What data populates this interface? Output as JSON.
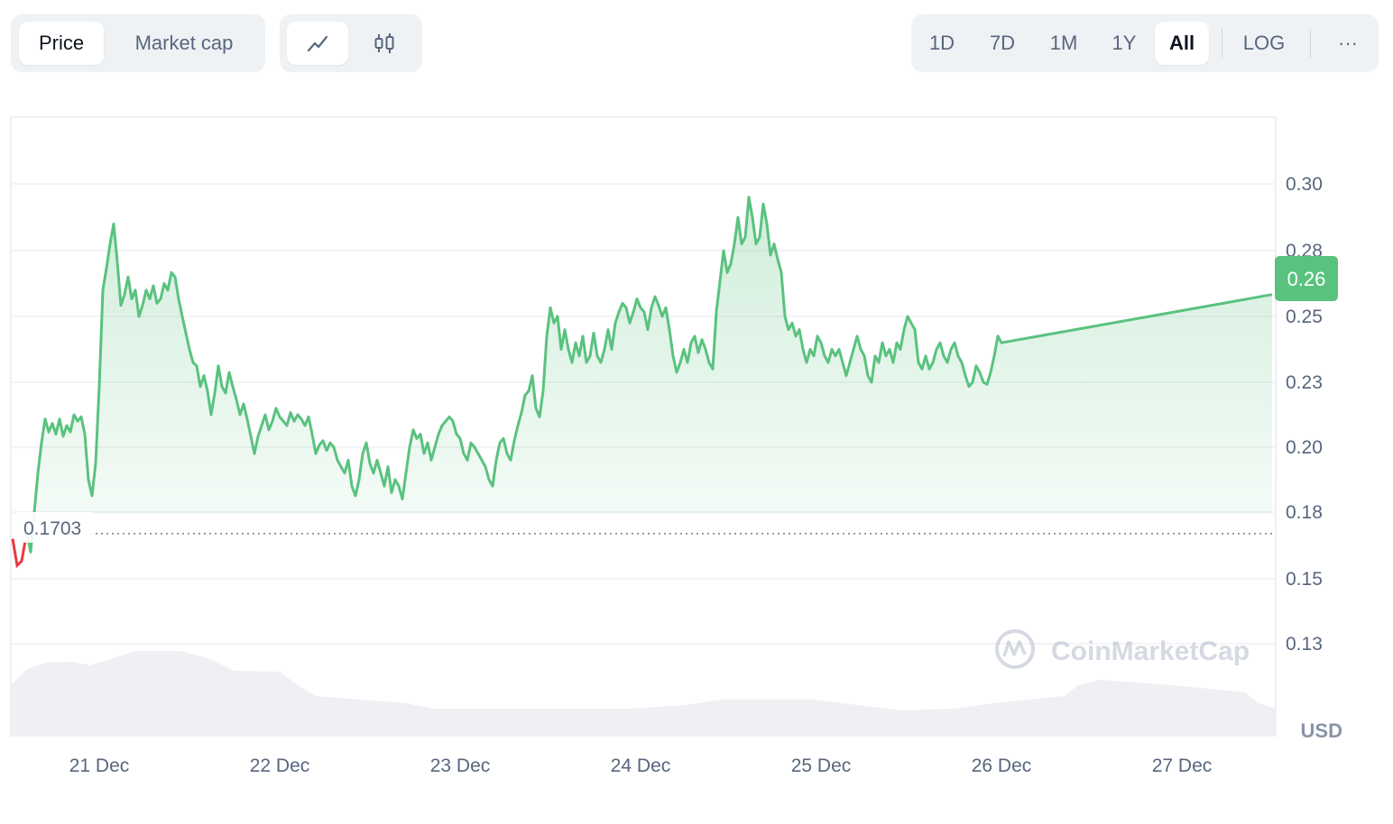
{
  "toolbar": {
    "type_tabs": [
      "Price",
      "Market cap"
    ],
    "active_type": "Price",
    "view_icons": [
      "line-chart-icon",
      "candlestick-icon"
    ],
    "ranges": [
      "1D",
      "7D",
      "1M",
      "1Y",
      "All"
    ],
    "active_range": "All",
    "log_label": "LOG",
    "more_label": "···"
  },
  "watermark": "CoinMarketCap",
  "currency_label": "USD",
  "colors": {
    "up": "#16c784",
    "down": "#ea3943",
    "line": "#5ac27f",
    "badge": "#5ac27f"
  },
  "chart_data": {
    "type": "area",
    "title": "",
    "xlabel": "",
    "ylabel": "",
    "x_ticks": [
      "21 Dec",
      "22 Dec",
      "23 Dec",
      "24 Dec",
      "25 Dec",
      "26 Dec",
      "27 Dec"
    ],
    "y_ticks": [
      "0.30",
      "0.28",
      "0.25",
      "0.23",
      "0.20",
      "0.18",
      "0.15",
      "0.13"
    ],
    "ylim": [
      0.11,
      0.32
    ],
    "xlim_days": [
      20.5,
      27.55
    ],
    "baseline_value": 0.1703,
    "baseline_label": "0.1703",
    "current_price_label": "0.26",
    "series": [
      {
        "name": "Price",
        "points": [
          [
            20.6,
            0.17
          ],
          [
            20.62,
            0.162
          ],
          [
            20.64,
            0.18
          ],
          [
            20.66,
            0.192
          ],
          [
            20.68,
            0.202
          ],
          [
            20.7,
            0.213
          ],
          [
            20.72,
            0.207
          ],
          [
            20.74,
            0.211
          ],
          [
            20.76,
            0.206
          ],
          [
            20.78,
            0.213
          ],
          [
            20.8,
            0.205
          ],
          [
            20.82,
            0.21
          ],
          [
            20.84,
            0.207
          ],
          [
            20.86,
            0.215
          ],
          [
            20.88,
            0.212
          ],
          [
            20.9,
            0.214
          ],
          [
            20.92,
            0.206
          ],
          [
            20.94,
            0.19
          ],
          [
            20.96,
            0.185
          ],
          [
            20.98,
            0.195
          ],
          [
            21.0,
            0.228
          ],
          [
            21.02,
            0.262
          ],
          [
            21.04,
            0.272
          ],
          [
            21.06,
            0.282
          ],
          [
            21.08,
            0.288
          ],
          [
            21.1,
            0.275
          ],
          [
            21.12,
            0.255
          ],
          [
            21.14,
            0.26
          ],
          [
            21.16,
            0.268
          ],
          [
            21.18,
            0.258
          ],
          [
            21.2,
            0.262
          ],
          [
            21.22,
            0.25
          ],
          [
            21.24,
            0.255
          ],
          [
            21.26,
            0.262
          ],
          [
            21.28,
            0.258
          ],
          [
            21.3,
            0.264
          ],
          [
            21.32,
            0.256
          ],
          [
            21.34,
            0.258
          ],
          [
            21.36,
            0.265
          ],
          [
            21.38,
            0.262
          ],
          [
            21.4,
            0.27
          ],
          [
            21.42,
            0.268
          ],
          [
            21.44,
            0.258
          ],
          [
            21.46,
            0.25
          ],
          [
            21.48,
            0.245
          ],
          [
            21.5,
            0.24
          ],
          [
            21.52,
            0.236
          ],
          [
            21.54,
            0.235
          ],
          [
            21.56,
            0.228
          ],
          [
            21.58,
            0.232
          ],
          [
            21.6,
            0.226
          ],
          [
            21.62,
            0.215
          ],
          [
            21.64,
            0.225
          ],
          [
            21.66,
            0.235
          ],
          [
            21.68,
            0.228
          ],
          [
            21.7,
            0.225
          ],
          [
            21.72,
            0.233
          ],
          [
            21.74,
            0.228
          ],
          [
            21.76,
            0.222
          ],
          [
            21.78,
            0.215
          ],
          [
            21.8,
            0.22
          ],
          [
            21.82,
            0.213
          ],
          [
            21.84,
            0.205
          ],
          [
            21.86,
            0.198
          ],
          [
            21.88,
            0.205
          ],
          [
            21.9,
            0.21
          ],
          [
            21.92,
            0.215
          ],
          [
            21.94,
            0.208
          ],
          [
            21.96,
            0.212
          ],
          [
            21.98,
            0.218
          ],
          [
            22.0,
            0.214
          ],
          [
            22.02,
            0.212
          ],
          [
            22.04,
            0.21
          ],
          [
            22.06,
            0.216
          ],
          [
            22.08,
            0.212
          ],
          [
            22.1,
            0.215
          ],
          [
            22.12,
            0.213
          ],
          [
            22.14,
            0.21
          ],
          [
            22.16,
            0.214
          ],
          [
            22.18,
            0.206
          ],
          [
            22.2,
            0.198
          ],
          [
            22.22,
            0.201
          ],
          [
            22.24,
            0.203
          ],
          [
            22.26,
            0.199
          ],
          [
            22.28,
            0.202
          ],
          [
            22.3,
            0.2
          ],
          [
            22.32,
            0.196
          ],
          [
            22.34,
            0.194
          ],
          [
            22.36,
            0.192
          ],
          [
            22.38,
            0.196
          ],
          [
            22.4,
            0.188
          ],
          [
            22.42,
            0.185
          ],
          [
            22.44,
            0.19
          ],
          [
            22.46,
            0.198
          ],
          [
            22.48,
            0.202
          ],
          [
            22.5,
            0.195
          ],
          [
            22.52,
            0.192
          ],
          [
            22.54,
            0.196
          ],
          [
            22.56,
            0.192
          ],
          [
            22.58,
            0.188
          ],
          [
            22.6,
            0.194
          ],
          [
            22.62,
            0.186
          ],
          [
            22.64,
            0.19
          ],
          [
            22.66,
            0.188
          ],
          [
            22.68,
            0.184
          ],
          [
            22.7,
            0.192
          ],
          [
            22.72,
            0.2
          ],
          [
            22.74,
            0.208
          ],
          [
            22.76,
            0.204
          ],
          [
            22.78,
            0.206
          ],
          [
            22.8,
            0.198
          ],
          [
            22.82,
            0.202
          ],
          [
            22.84,
            0.196
          ],
          [
            22.86,
            0.2
          ],
          [
            22.88,
            0.206
          ],
          [
            22.9,
            0.21
          ],
          [
            22.92,
            0.212
          ],
          [
            22.94,
            0.214
          ],
          [
            22.96,
            0.212
          ],
          [
            22.98,
            0.206
          ],
          [
            23.0,
            0.204
          ],
          [
            23.02,
            0.198
          ],
          [
            23.04,
            0.196
          ],
          [
            23.06,
            0.202
          ],
          [
            23.08,
            0.2
          ],
          [
            23.1,
            0.198
          ],
          [
            23.12,
            0.196
          ],
          [
            23.14,
            0.194
          ],
          [
            23.16,
            0.19
          ],
          [
            23.18,
            0.188
          ],
          [
            23.2,
            0.196
          ],
          [
            23.22,
            0.202
          ],
          [
            23.24,
            0.204
          ],
          [
            23.26,
            0.198
          ],
          [
            23.28,
            0.196
          ],
          [
            23.3,
            0.203
          ],
          [
            23.32,
            0.21
          ],
          [
            23.34,
            0.216
          ],
          [
            23.36,
            0.224
          ],
          [
            23.38,
            0.226
          ],
          [
            23.4,
            0.232
          ],
          [
            23.42,
            0.218
          ],
          [
            23.44,
            0.214
          ],
          [
            23.46,
            0.226
          ],
          [
            23.48,
            0.244
          ],
          [
            23.5,
            0.254
          ],
          [
            23.52,
            0.248
          ],
          [
            23.54,
            0.25
          ],
          [
            23.56,
            0.24
          ],
          [
            23.58,
            0.246
          ],
          [
            23.6,
            0.24
          ],
          [
            23.62,
            0.236
          ],
          [
            23.64,
            0.242
          ],
          [
            23.66,
            0.238
          ],
          [
            23.68,
            0.244
          ],
          [
            23.7,
            0.236
          ],
          [
            23.72,
            0.238
          ],
          [
            23.74,
            0.245
          ],
          [
            23.76,
            0.238
          ],
          [
            23.78,
            0.236
          ],
          [
            23.8,
            0.24
          ],
          [
            23.82,
            0.246
          ],
          [
            23.84,
            0.24
          ],
          [
            23.86,
            0.248
          ],
          [
            23.88,
            0.252
          ],
          [
            23.9,
            0.256
          ],
          [
            23.92,
            0.254
          ],
          [
            23.94,
            0.248
          ],
          [
            23.96,
            0.252
          ],
          [
            23.98,
            0.258
          ],
          [
            24.0,
            0.254
          ],
          [
            24.02,
            0.252
          ],
          [
            24.04,
            0.246
          ],
          [
            24.06,
            0.254
          ],
          [
            24.08,
            0.259
          ],
          [
            24.1,
            0.255
          ],
          [
            24.12,
            0.25
          ],
          [
            24.14,
            0.254
          ],
          [
            24.16,
            0.246
          ],
          [
            24.18,
            0.238
          ],
          [
            24.2,
            0.233
          ],
          [
            24.22,
            0.236
          ],
          [
            24.24,
            0.24
          ],
          [
            24.26,
            0.236
          ],
          [
            24.28,
            0.242
          ],
          [
            24.3,
            0.244
          ],
          [
            24.32,
            0.239
          ],
          [
            24.34,
            0.243
          ],
          [
            24.36,
            0.24
          ],
          [
            24.38,
            0.236
          ],
          [
            24.4,
            0.234
          ],
          [
            24.42,
            0.252
          ],
          [
            24.44,
            0.266
          ],
          [
            24.46,
            0.28
          ],
          [
            24.48,
            0.27
          ],
          [
            24.5,
            0.274
          ],
          [
            24.52,
            0.282
          ],
          [
            24.54,
            0.29
          ],
          [
            24.56,
            0.282
          ],
          [
            24.58,
            0.284
          ],
          [
            24.6,
            0.296
          ],
          [
            24.62,
            0.29
          ],
          [
            24.64,
            0.282
          ],
          [
            24.66,
            0.284
          ],
          [
            24.68,
            0.294
          ],
          [
            24.7,
            0.288
          ],
          [
            24.72,
            0.278
          ],
          [
            24.74,
            0.282
          ],
          [
            24.76,
            0.276
          ],
          [
            24.78,
            0.27
          ],
          [
            24.8,
            0.25
          ],
          [
            24.82,
            0.246
          ],
          [
            24.84,
            0.248
          ],
          [
            24.86,
            0.244
          ],
          [
            24.88,
            0.246
          ],
          [
            24.9,
            0.24
          ],
          [
            24.92,
            0.236
          ],
          [
            24.94,
            0.24
          ],
          [
            24.96,
            0.238
          ],
          [
            24.98,
            0.244
          ],
          [
            25.0,
            0.242
          ],
          [
            25.02,
            0.238
          ],
          [
            25.04,
            0.236
          ],
          [
            25.06,
            0.24
          ],
          [
            25.08,
            0.238
          ],
          [
            25.1,
            0.24
          ],
          [
            25.12,
            0.236
          ],
          [
            25.14,
            0.232
          ],
          [
            25.16,
            0.236
          ],
          [
            25.18,
            0.24
          ],
          [
            25.2,
            0.244
          ],
          [
            25.22,
            0.24
          ],
          [
            25.24,
            0.238
          ],
          [
            25.26,
            0.232
          ],
          [
            25.28,
            0.23
          ],
          [
            25.3,
            0.238
          ],
          [
            25.32,
            0.236
          ],
          [
            25.34,
            0.242
          ],
          [
            25.36,
            0.238
          ],
          [
            25.38,
            0.24
          ],
          [
            25.4,
            0.236
          ],
          [
            25.42,
            0.242
          ],
          [
            25.44,
            0.24
          ],
          [
            25.46,
            0.246
          ],
          [
            25.48,
            0.25
          ],
          [
            25.5,
            0.248
          ],
          [
            25.52,
            0.246
          ],
          [
            25.54,
            0.236
          ],
          [
            25.56,
            0.234
          ],
          [
            25.58,
            0.238
          ],
          [
            25.6,
            0.234
          ],
          [
            25.62,
            0.236
          ],
          [
            25.64,
            0.24
          ],
          [
            25.66,
            0.242
          ],
          [
            25.68,
            0.238
          ],
          [
            25.7,
            0.236
          ],
          [
            25.72,
            0.24
          ],
          [
            25.74,
            0.242
          ],
          [
            25.76,
            0.238
          ],
          [
            25.78,
            0.236
          ],
          [
            25.8,
            0.232
          ],
          [
            25.82,
            0.228
          ],
          [
            25.84,
            0.23
          ],
          [
            25.86,
            0.235
          ],
          [
            25.88,
            0.233
          ],
          [
            25.9,
            0.23
          ],
          [
            25.92,
            0.229
          ],
          [
            25.94,
            0.233
          ],
          [
            25.96,
            0.238
          ],
          [
            25.98,
            0.244
          ],
          [
            26.0,
            0.242
          ]
        ]
      }
    ]
  }
}
